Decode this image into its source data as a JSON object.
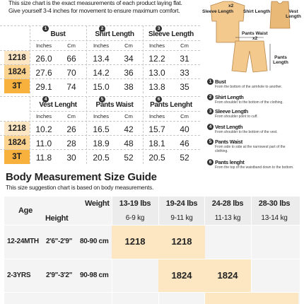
{
  "intro": [
    "This size chart is the exact measurements of each product laying flat.",
    "Give yourself 3-4 inches for movement to ensure maximum comfort."
  ],
  "garment_tables": [
    {
      "headers": [
        "Bust",
        "Shirt Length",
        "Sleeve Length"
      ],
      "units": [
        "Inches",
        "Cm",
        "Inches",
        "Cm",
        "Inches",
        "Cm"
      ],
      "rows": [
        {
          "size": "1218",
          "values": [
            "26.0",
            "66",
            "13.4",
            "34",
            "12.2",
            "31"
          ]
        },
        {
          "size": "1824",
          "values": [
            "27.6",
            "70",
            "14.2",
            "36",
            "13.0",
            "33"
          ]
        },
        {
          "size": "3T",
          "values": [
            "29.1",
            "74",
            "15.0",
            "38",
            "13.8",
            "35"
          ]
        }
      ]
    },
    {
      "headers": [
        "Vest Lenght",
        "Pants Waist",
        "Pants Lenght"
      ],
      "units": [
        "Inches",
        "Cm",
        "Inches",
        "Cm",
        "Inches",
        "Cm"
      ],
      "rows": [
        {
          "size": "1218",
          "values": [
            "10.2",
            "26",
            "16.5",
            "42",
            "15.7",
            "40"
          ]
        },
        {
          "size": "1824",
          "values": [
            "11.0",
            "28",
            "18.9",
            "48",
            "18.1",
            "46"
          ]
        },
        {
          "size": "3T",
          "values": [
            "11.8",
            "30",
            "20.5",
            "52",
            "20.5",
            "52"
          ]
        }
      ]
    }
  ],
  "diagram": {
    "sleeve": "Sleeve Length",
    "shirt": "Shirt Length",
    "vest": "Vest Length",
    "bust_multiplier": "x2",
    "waist": "Pants Waist",
    "waist_multiplier": "x2",
    "pants": "Pants Length"
  },
  "legend": [
    {
      "num": "1",
      "title": "Bust",
      "desc": "From the bottom of the armhole to another."
    },
    {
      "num": "2",
      "title": "Shirt Length",
      "desc": "From shoulder to the bottom of the clothing."
    },
    {
      "num": "3",
      "title": "Sleeve Length",
      "desc": "From shoulder point to cuff."
    },
    {
      "num": "4",
      "title": "Vest Length",
      "desc": "From shoulder to the bottom of the vest."
    },
    {
      "num": "5",
      "title": "Pants Waist",
      "desc": "From side to side at the narrowest part of the clothing."
    },
    {
      "num": "6",
      "title": "Pants lenght",
      "desc": "From the top of the waistband down to the bottom."
    }
  ],
  "body_guide": {
    "title": "Body Measurement Size Guide",
    "subtitle": "This size suggestion chart is based on body measurements.",
    "age_header": "Age",
    "weight_header": "Weight",
    "height_header": "Height",
    "weights": [
      {
        "lbs": "13-19 lbs",
        "kg": "6-9 kg"
      },
      {
        "lbs": "19-24 lbs",
        "kg": "9-11 kg"
      },
      {
        "lbs": "24-28 lbs",
        "kg": "11-13 kg"
      },
      {
        "lbs": "28-30 lbs",
        "kg": "13-14 kg"
      }
    ],
    "rows": [
      {
        "age": "12-24MTH",
        "height_ft": "2'6\"-2'9\"",
        "height_cm": "80-90 cm",
        "cells": [
          "1218",
          "1218",
          null,
          null
        ]
      },
      {
        "age": "2-3YRS",
        "height_ft": "2'9\"-3'2\"",
        "height_cm": "90-98 cm",
        "cells": [
          null,
          "1824",
          "1824",
          null
        ]
      }
    ]
  }
}
